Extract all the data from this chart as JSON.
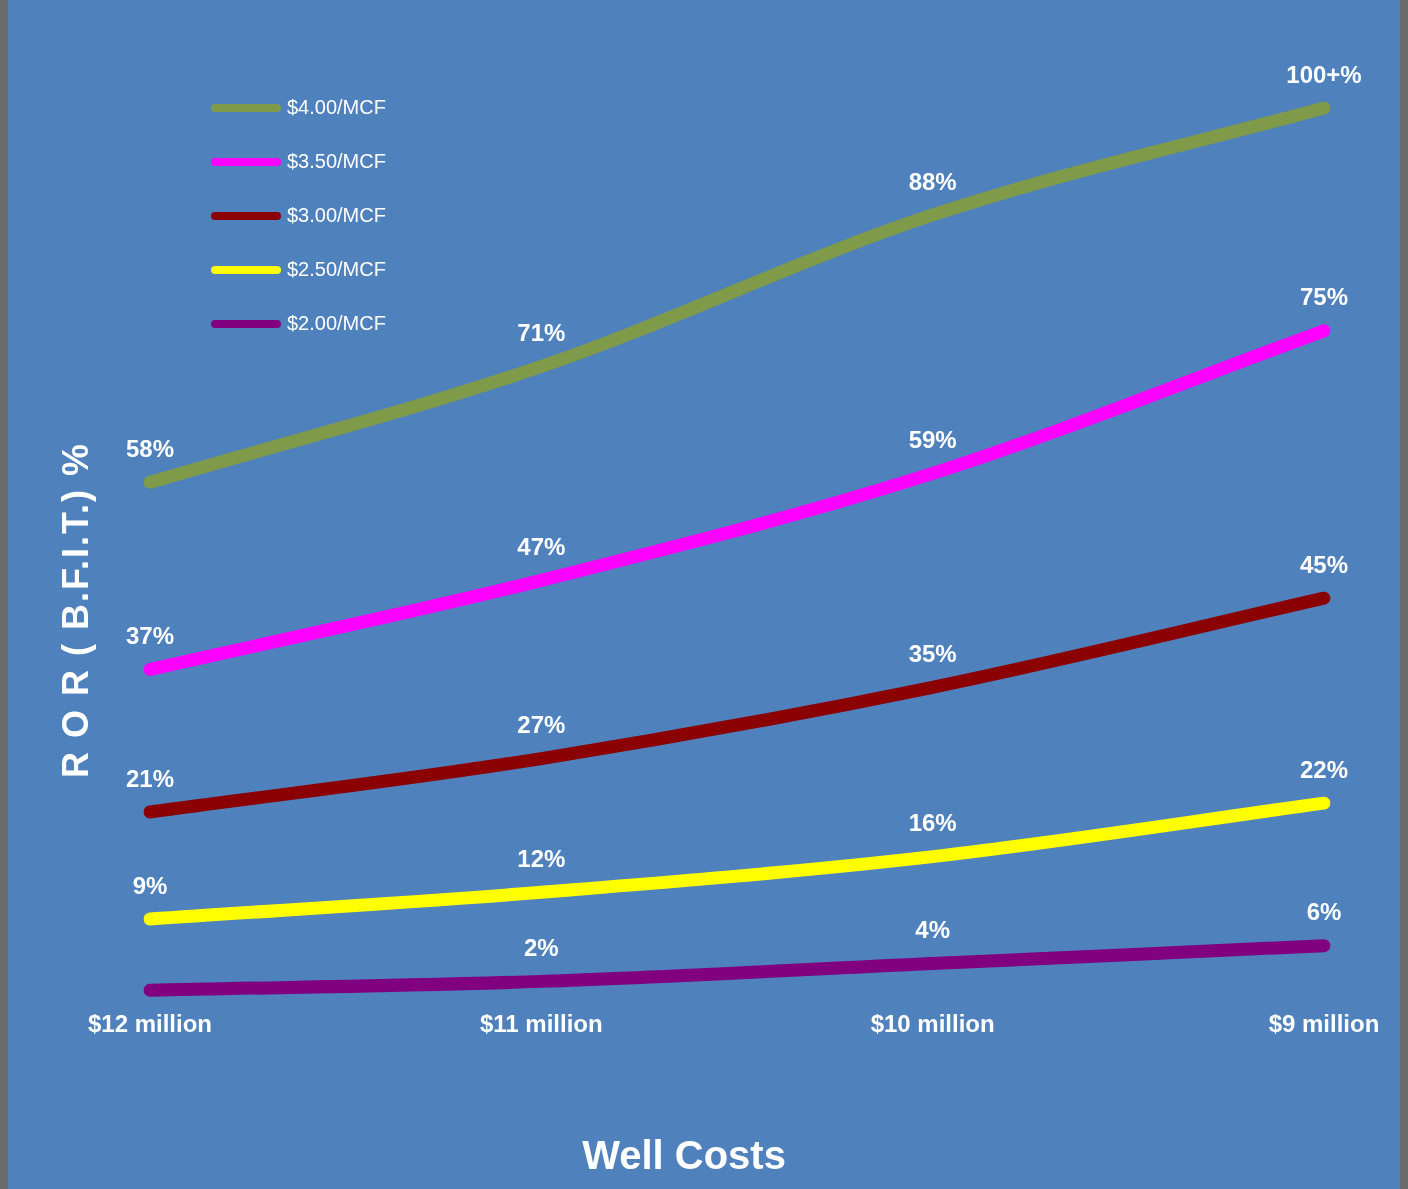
{
  "chart_data": {
    "type": "line",
    "xlabel": "Well Costs",
    "ylabel": "R O R ( B.F.I.T.) %",
    "categories": [
      "$12 million",
      "$11 million",
      "$10 million",
      "$9 million"
    ],
    "series": [
      {
        "name": "$4.00/MCF",
        "color": "#7f9a48",
        "values": [
          58,
          71,
          88,
          100
        ],
        "value_labels": [
          "58%",
          "71%",
          "88%",
          "100+%"
        ]
      },
      {
        "name": "$3.50/MCF",
        "color": "#ff00ff",
        "values": [
          37,
          47,
          59,
          75
        ],
        "value_labels": [
          "37%",
          "47%",
          "59%",
          "75%"
        ]
      },
      {
        "name": "$3.00/MCF",
        "color": "#8b0000",
        "values": [
          21,
          27,
          35,
          45
        ],
        "value_labels": [
          "21%",
          "27%",
          "35%",
          "45%"
        ]
      },
      {
        "name": "$2.50/MCF",
        "color": "#ffff00",
        "values": [
          9,
          12,
          16,
          22
        ],
        "value_labels": [
          "9%",
          "12%",
          "16%",
          "22%"
        ]
      },
      {
        "name": "$2.00/MCF",
        "color": "#800080",
        "values": [
          1,
          2,
          4,
          6
        ],
        "value_labels": [
          null,
          "2%",
          "4%",
          "6%"
        ]
      }
    ],
    "tick_labels": "x",
    "grid": false,
    "legend": "top left",
    "marker": "none",
    "line_style": "solid"
  }
}
